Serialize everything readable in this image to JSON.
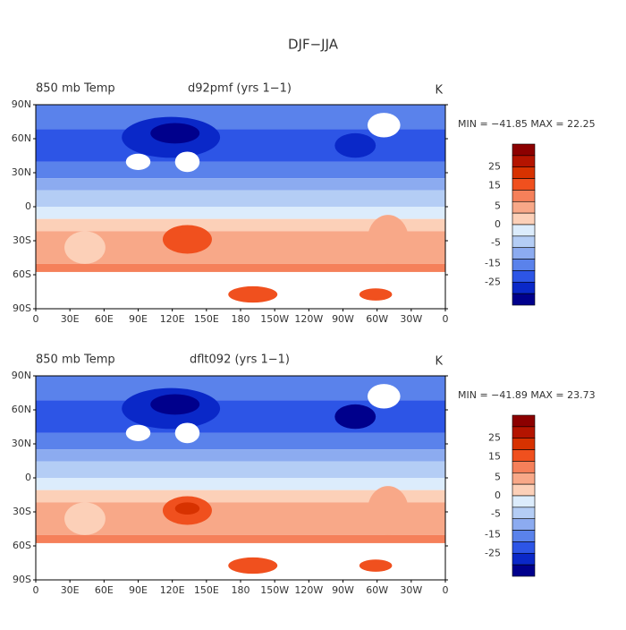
{
  "title": "DJF−JJA",
  "lat_labels": [
    "90N",
    "60N",
    "30N",
    "0",
    "30S",
    "60S",
    "90S"
  ],
  "lon_labels": [
    "0",
    "30E",
    "60E",
    "90E",
    "120E",
    "150E",
    "180",
    "150W",
    "120W",
    "90W",
    "60W",
    "30W",
    "0"
  ],
  "colorbar": {
    "colors": [
      "#8c0000",
      "#b41400",
      "#d73200",
      "#f0501e",
      "#f5805a",
      "#f8a888",
      "#fcd0b8",
      "#dcecfc",
      "#b4cdf5",
      "#8cabf0",
      "#5a82eb",
      "#2d55e6",
      "#0a28c8",
      "#00008c"
    ],
    "labels": [
      "25",
      "15",
      "5",
      "0",
      "-5",
      "-15",
      "-25"
    ]
  },
  "panels": [
    {
      "left_title": "850 mb Temp",
      "center_title": "d92pmf (yrs 1−1)",
      "units": "K",
      "stats": "MIN = −41.85 MAX =  22.25"
    },
    {
      "left_title": "850 mb Temp",
      "center_title": "dflt092 (yrs 1−1)",
      "units": "K",
      "stats": "MIN = −41.89 MAX =  23.73"
    }
  ]
}
